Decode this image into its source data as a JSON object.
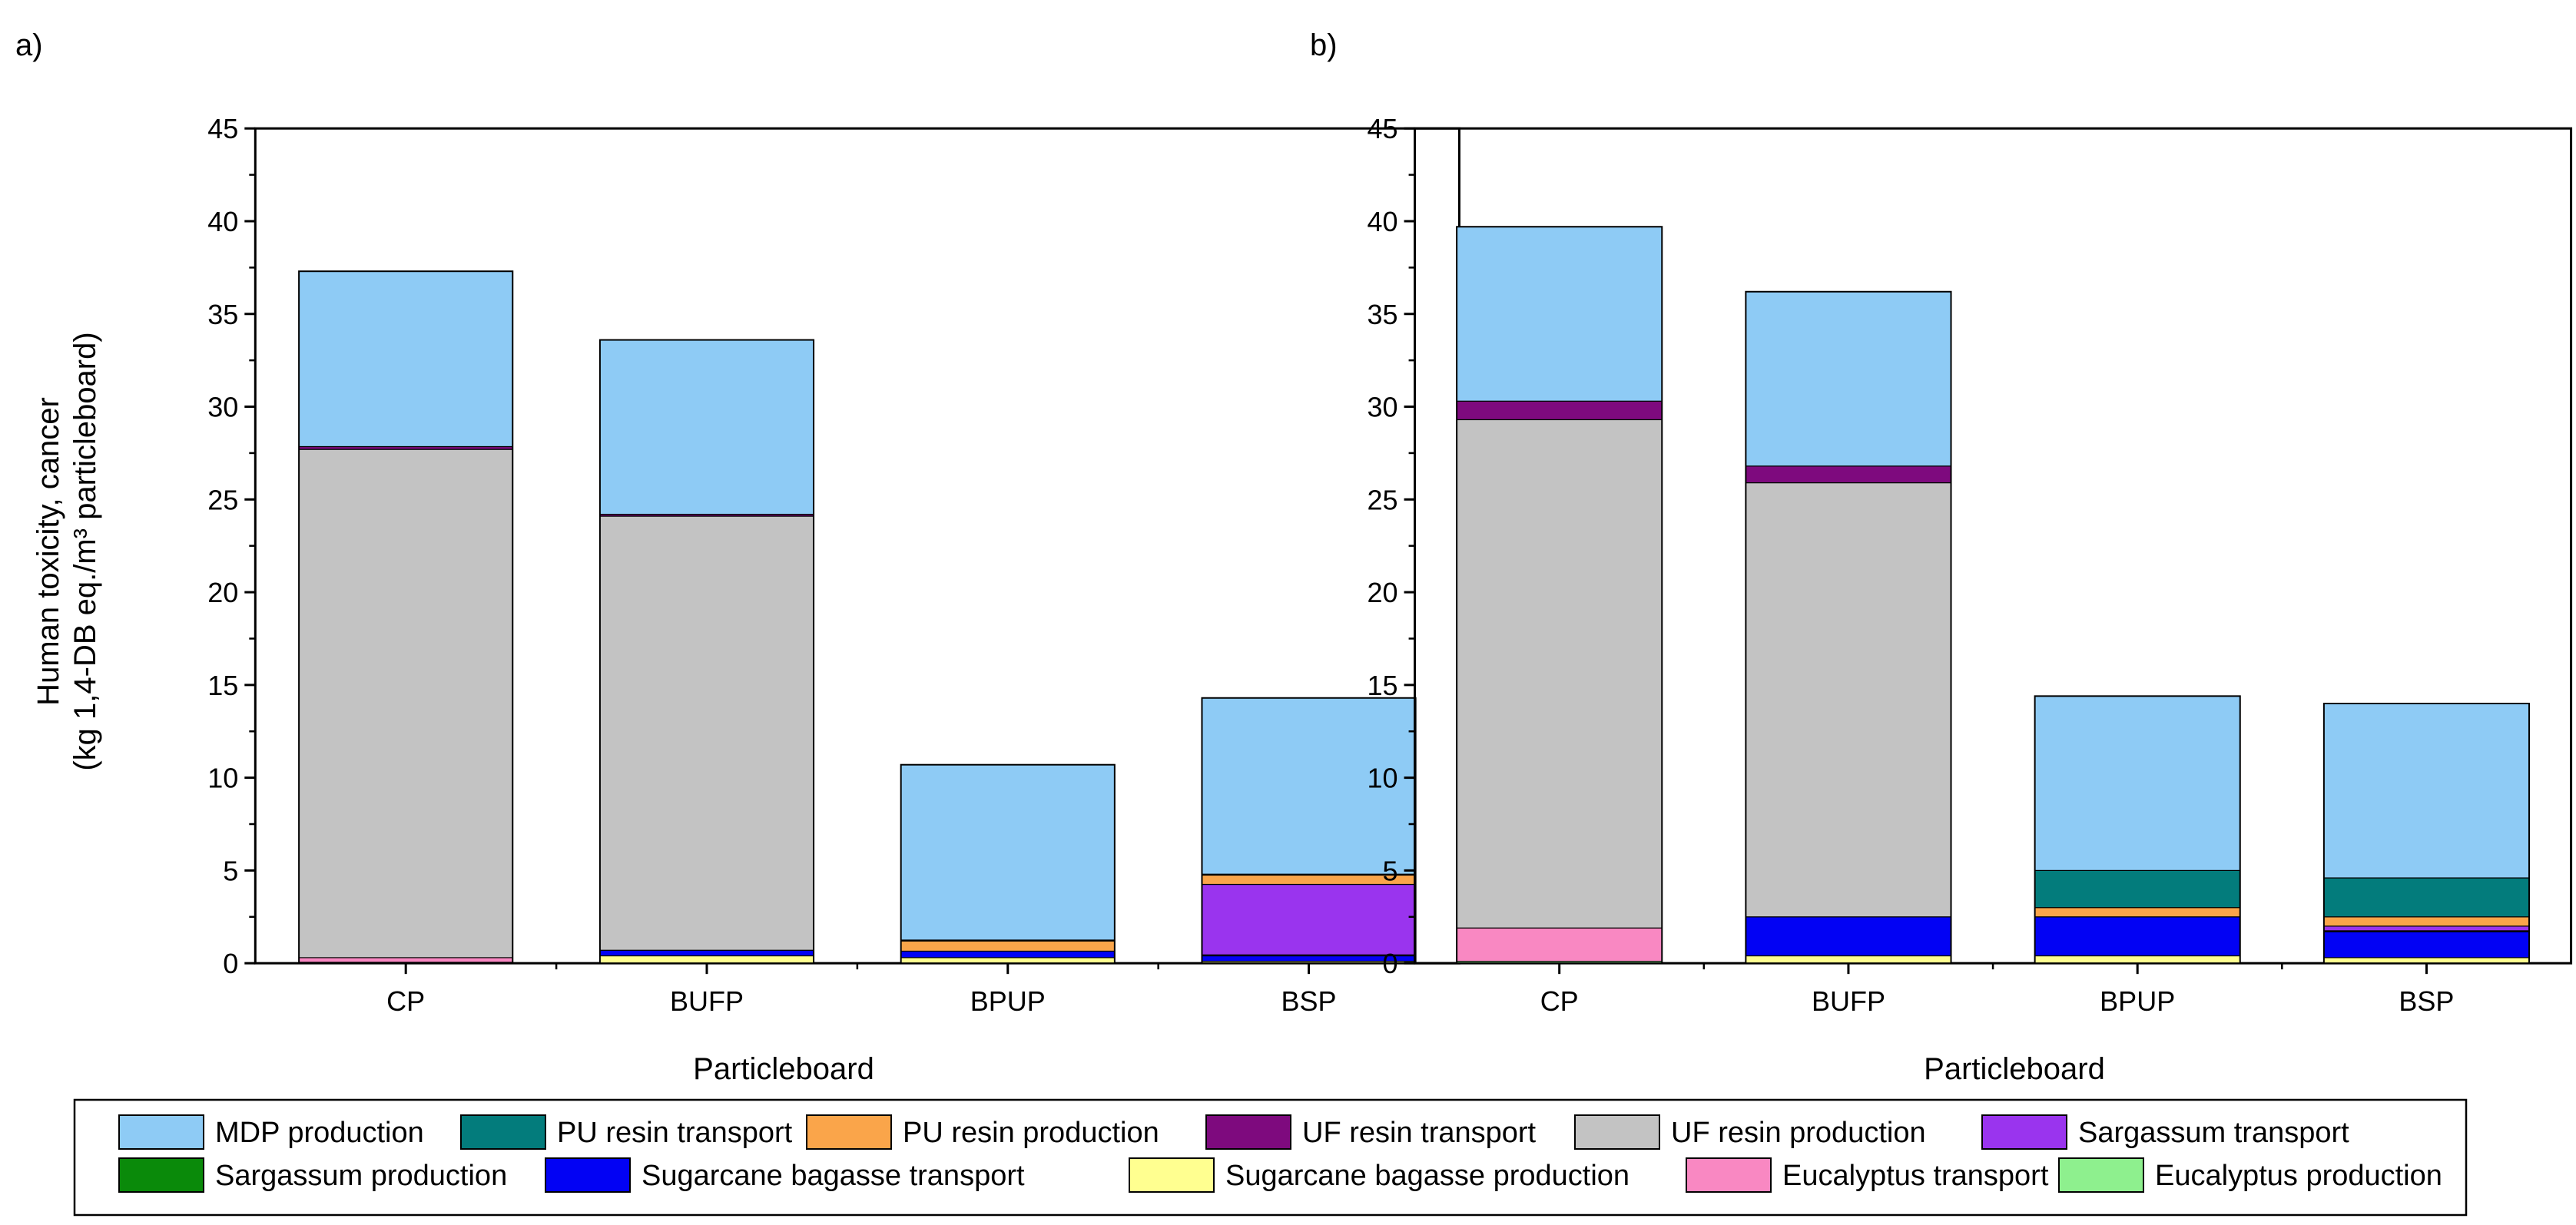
{
  "figure": {
    "ylabel": "Human toxicity, cancer\n(kg 1,4-DB eq./m³ particleboard)",
    "legend": {
      "entries": [
        "MDP production",
        "PU resin transport",
        "PU resin production",
        "UF resin transport",
        "UF resin production",
        "Sargassum transport",
        "Sargassum production",
        "Sugarcane bagasse transport",
        "Sugarcane bagasse production",
        "Eucalyptus transport",
        "Eucalyptus production"
      ],
      "placement": "bottom"
    },
    "colors": {
      "MDP production": "#8ecbf5",
      "PU resin transport": "#037c7c",
      "PU resin production": "#faa54a",
      "UF resin transport": "#7e0a7e",
      "UF resin production": "#c3c3c3",
      "Sargassum transport": "#9a34ee",
      "Sargassum production": "#0a8a0a",
      "Sugarcane bagasse transport": "#0202f4",
      "Sugarcane bagasse production": "#ffff90",
      "Eucalyptus transport": "#f988c2",
      "Eucalyptus production": "#8ef08e"
    }
  },
  "chart_data": [
    {
      "type": "bar",
      "stacked": true,
      "panel_label": "a)",
      "xlabel": "Particleboard",
      "ylabel": "Human toxicity, cancer\n(kg 1,4-DB eq./m³ particleboard)",
      "ylim": [
        0,
        45
      ],
      "yticks": [
        "0",
        "5",
        "10",
        "15",
        "20",
        "25",
        "30",
        "35",
        "40",
        "45"
      ],
      "grid": false,
      "categories": [
        "CP",
        "BUFP",
        "BPUP",
        "BSP"
      ],
      "series": [
        {
          "name": "Eucalyptus production",
          "values": [
            0.05,
            0,
            0,
            0
          ]
        },
        {
          "name": "Eucalyptus transport",
          "values": [
            0.25,
            0,
            0,
            0
          ]
        },
        {
          "name": "Sugarcane bagasse production",
          "values": [
            0,
            0.4,
            0.3,
            0.1
          ]
        },
        {
          "name": "Sugarcane bagasse transport",
          "values": [
            0,
            0.3,
            0.35,
            0.3
          ]
        },
        {
          "name": "Sargassum production",
          "values": [
            0,
            0,
            0,
            0.05
          ]
        },
        {
          "name": "Sargassum transport",
          "values": [
            0,
            0,
            0,
            3.8
          ]
        },
        {
          "name": "UF resin production",
          "values": [
            27.4,
            23.4,
            0,
            0
          ]
        },
        {
          "name": "UF resin transport",
          "values": [
            0.15,
            0.1,
            0,
            0
          ]
        },
        {
          "name": "PU resin production",
          "values": [
            0,
            0,
            0.55,
            0.5
          ]
        },
        {
          "name": "PU resin transport",
          "values": [
            0,
            0,
            0.05,
            0.05
          ]
        },
        {
          "name": "MDP production",
          "values": [
            9.45,
            9.4,
            9.45,
            9.5
          ]
        }
      ]
    },
    {
      "type": "bar",
      "stacked": true,
      "panel_label": "b)",
      "xlabel": "Particleboard",
      "ylim": [
        0,
        45
      ],
      "yticks": [
        "0",
        "5",
        "10",
        "15",
        "20",
        "25",
        "30",
        "35",
        "40",
        "45"
      ],
      "grid": false,
      "categories": [
        "CP",
        "BUFP",
        "BPUP",
        "BSP"
      ],
      "series": [
        {
          "name": "Eucalyptus production",
          "values": [
            0.1,
            0,
            0,
            0
          ]
        },
        {
          "name": "Eucalyptus transport",
          "values": [
            1.8,
            0,
            0,
            0
          ]
        },
        {
          "name": "Sugarcane bagasse production",
          "values": [
            0,
            0.4,
            0.4,
            0.3
          ]
        },
        {
          "name": "Sugarcane bagasse transport",
          "values": [
            0,
            2.1,
            2.1,
            1.4
          ]
        },
        {
          "name": "Sargassum production",
          "values": [
            0,
            0,
            0,
            0.05
          ]
        },
        {
          "name": "Sargassum transport",
          "values": [
            0,
            0,
            0,
            0.25
          ]
        },
        {
          "name": "UF resin production",
          "values": [
            27.4,
            23.4,
            0,
            0
          ]
        },
        {
          "name": "UF resin transport",
          "values": [
            1.0,
            0.9,
            0,
            0
          ]
        },
        {
          "name": "PU resin production",
          "values": [
            0,
            0,
            0.5,
            0.5
          ]
        },
        {
          "name": "PU resin transport",
          "values": [
            0,
            0,
            2.0,
            2.1
          ]
        },
        {
          "name": "MDP production",
          "values": [
            9.4,
            9.4,
            9.4,
            9.4
          ]
        }
      ]
    }
  ]
}
